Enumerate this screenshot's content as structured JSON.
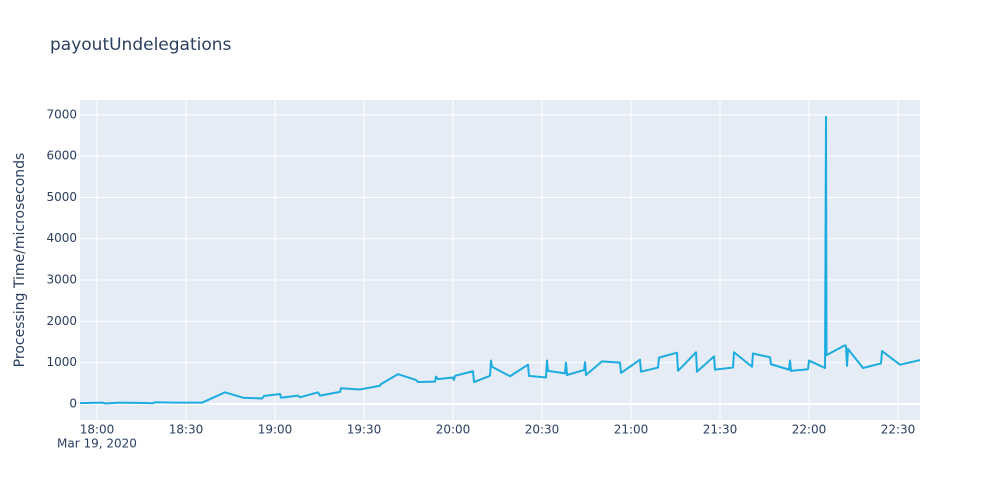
{
  "chart_data": {
    "type": "line",
    "title": "payoutUndelegations",
    "y_label": "Processing Time/microseconds",
    "x_date_label": "Mar 19, 2020",
    "x": [
      "2020-03-19 17:54:16",
      "2020-03-19 18:02:01",
      "2020-03-19 18:02:42",
      "2020-03-19 18:07:45",
      "2020-03-19 18:14:30",
      "2020-03-19 18:18:53",
      "2020-03-19 18:19:33",
      "2020-03-19 18:26:17",
      "2020-03-19 18:35:24",
      "2020-03-19 18:43:09",
      "2020-03-19 18:49:13",
      "2020-03-19 18:55:37",
      "2020-03-19 18:56:17",
      "2020-03-19 19:01:41",
      "2020-03-19 19:02:01",
      "2020-03-19 19:07:45",
      "2020-03-19 19:08:26",
      "2020-03-19 19:14:30",
      "2020-03-19 19:15:10",
      "2020-03-19 19:21:55",
      "2020-03-19 19:22:15",
      "2020-03-19 19:28:39",
      "2020-03-19 19:35:24",
      "2020-03-19 19:35:44",
      "2020-03-19 19:41:28",
      "2020-03-19 19:47:32",
      "2020-03-19 19:48:12",
      "2020-03-19 19:53:56",
      "2020-03-19 19:54:16",
      "2020-03-19 19:54:57",
      "2020-03-19 20:00:00",
      "2020-03-19 20:00:20",
      "2020-03-19 20:00:40",
      "2020-03-19 20:06:44",
      "2020-03-19 20:07:05",
      "2020-03-19 20:12:28",
      "2020-03-19 20:12:49",
      "2020-03-19 20:13:09",
      "2020-03-19 20:19:13",
      "2020-03-19 20:25:17",
      "2020-03-19 20:25:37",
      "2020-03-19 20:31:21",
      "2020-03-19 20:31:41",
      "2020-03-19 20:32:01",
      "2020-03-19 20:37:45",
      "2020-03-19 20:38:05",
      "2020-03-19 20:38:26",
      "2020-03-19 20:44:10",
      "2020-03-19 20:44:30",
      "2020-03-19 20:44:50",
      "2020-03-19 20:50:13",
      "2020-03-19 20:56:17",
      "2020-03-19 20:56:38",
      "2020-03-19 21:03:02",
      "2020-03-19 21:03:22",
      "2020-03-19 21:09:06",
      "2020-03-19 21:09:26",
      "2020-03-19 21:15:30",
      "2020-03-19 21:15:51",
      "2020-03-19 21:21:55",
      "2020-03-19 21:22:15",
      "2020-03-19 21:27:59",
      "2020-03-19 21:28:19",
      "2020-03-19 21:34:23",
      "2020-03-19 21:34:43",
      "2020-03-19 21:40:47",
      "2020-03-19 21:41:07",
      "2020-03-19 21:46:51",
      "2020-03-19 21:47:11",
      "2020-03-19 21:53:15",
      "2020-03-19 21:53:36",
      "2020-03-19 21:53:56",
      "2020-03-19 21:59:40",
      "2020-03-19 22:00:00",
      "2020-03-19 22:05:24",
      "2020-03-19 22:05:44",
      "2020-03-19 22:05:54",
      "2020-03-19 22:12:08",
      "2020-03-19 22:12:28",
      "2020-03-19 22:12:49",
      "2020-03-19 22:13:09",
      "2020-03-19 22:18:12",
      "2020-03-19 22:24:16",
      "2020-03-19 22:24:37",
      "2020-03-19 22:30:40",
      "2020-03-19 22:37:25"
    ],
    "series": [
      {
        "name": "payoutUndelegations",
        "color": "#1cace0",
        "values": [
          20,
          30,
          10,
          30,
          25,
          15,
          40,
          30,
          30,
          280,
          150,
          130,
          190,
          240,
          150,
          200,
          160,
          280,
          200,
          290,
          380,
          350,
          440,
          480,
          720,
          580,
          530,
          540,
          660,
          600,
          640,
          580,
          680,
          790,
          530,
          680,
          1050,
          900,
          670,
          950,
          680,
          640,
          1050,
          800,
          740,
          1000,
          700,
          820,
          1010,
          700,
          1030,
          1000,
          750,
          1070,
          780,
          880,
          1120,
          1240,
          800,
          1250,
          780,
          1150,
          830,
          880,
          1250,
          900,
          1220,
          1130,
          960,
          830,
          1050,
          800,
          840,
          1050,
          870,
          6950,
          1180,
          1420,
          1400,
          920,
          1330,
          870,
          980,
          1280,
          950,
          1060
        ]
      }
    ],
    "xlim": [
      "2020-03-19 17:54:16",
      "2020-03-19 22:37:25"
    ],
    "xticks": [
      {
        "value": "2020-03-19 18:00:00",
        "label": "18:00"
      },
      {
        "value": "2020-03-19 18:30:00",
        "label": "18:30"
      },
      {
        "value": "2020-03-19 19:00:00",
        "label": "19:00"
      },
      {
        "value": "2020-03-19 19:30:00",
        "label": "19:30"
      },
      {
        "value": "2020-03-19 20:00:00",
        "label": "20:00"
      },
      {
        "value": "2020-03-19 20:30:00",
        "label": "20:30"
      },
      {
        "value": "2020-03-19 21:00:00",
        "label": "21:00"
      },
      {
        "value": "2020-03-19 21:30:00",
        "label": "21:30"
      },
      {
        "value": "2020-03-19 22:00:00",
        "label": "22:00"
      },
      {
        "value": "2020-03-19 22:30:00",
        "label": "22:30"
      }
    ],
    "ylim": [
      -390,
      7360
    ],
    "yticks": [
      0,
      1000,
      2000,
      3000,
      4000,
      5000,
      6000,
      7000
    ],
    "grid": true
  }
}
